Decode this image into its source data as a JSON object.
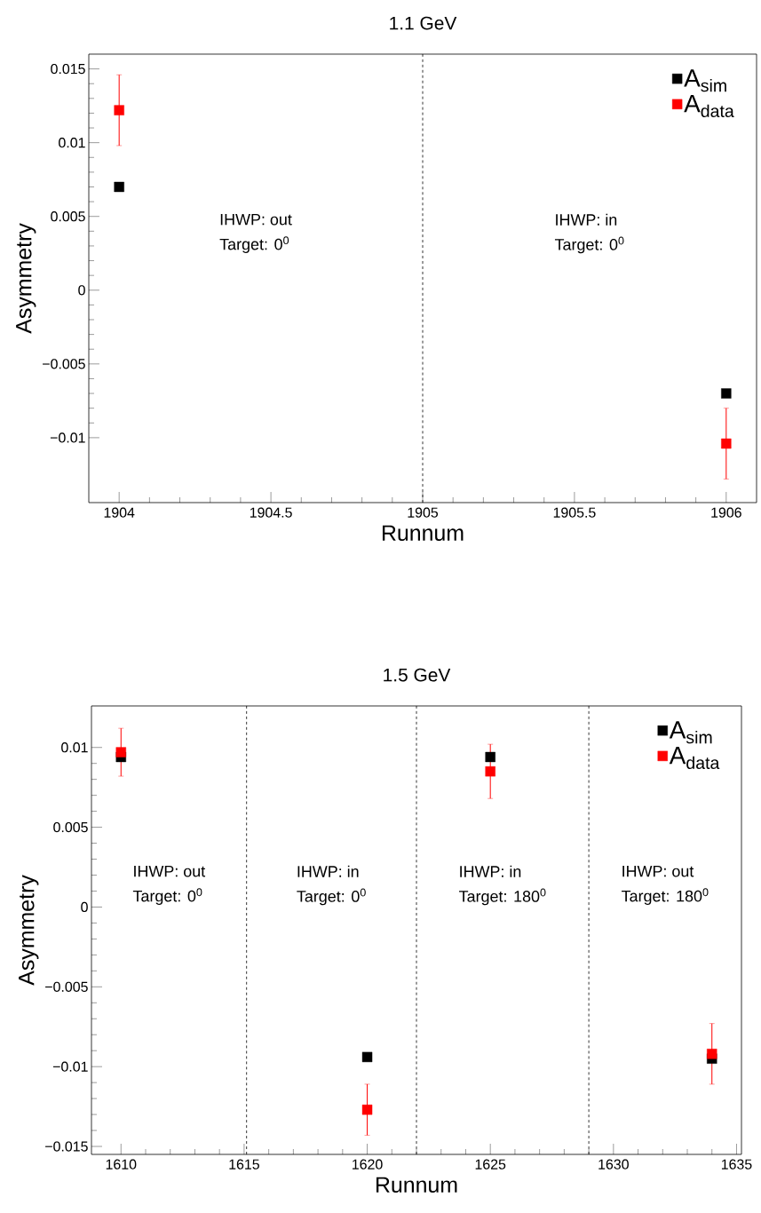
{
  "chart_data": [
    {
      "type": "scatter",
      "title": "1.1 GeV",
      "xlabel": "Runnum",
      "ylabel": "Asymmetry",
      "x": [
        1904,
        1906
      ],
      "series": [
        {
          "name": "A$_{sim}$",
          "color": "#000000",
          "values": [
            0.007,
            -0.007
          ]
        },
        {
          "name": "A$_{data}$",
          "color": "#ff0000",
          "values": [
            0.0122,
            -0.0104
          ],
          "errors": [
            0.0024,
            0.0024
          ]
        }
      ],
      "xlim": [
        1903.9,
        1906.1
      ],
      "ylim": [
        -0.0144,
        0.016
      ],
      "xticks": [
        1904,
        1904.5,
        1905,
        1905.5,
        1906
      ],
      "yticks": [
        {
          "value": -0.01,
          "label": "−0.01"
        },
        {
          "value": -0.005,
          "label": "−0.005"
        },
        0,
        0.005,
        0.01,
        0.015
      ],
      "ref_lines": [
        {
          "axis": "x",
          "value": 1905,
          "line_style": "dashed",
          "color": "#000000"
        }
      ],
      "annotations": [
        "IHWP: out",
        "Target: 0$^{0}$",
        "IHWP: in",
        "Target: 0$^{0}$"
      ],
      "marker": "square",
      "legend": "top right",
      "grid": false
    },
    {
      "type": "scatter",
      "title": "1.5 GeV",
      "xlabel": "Runnum",
      "ylabel": "Asymmetry",
      "x": [
        1610,
        1620,
        1625,
        1634
      ],
      "series": [
        {
          "name": "A$_{sim}$",
          "color": "#000000",
          "values": [
            0.0094,
            -0.0094,
            0.0094,
            -0.0095
          ]
        },
        {
          "name": "A$_{data}$",
          "color": "#ff0000",
          "values": [
            0.0097,
            -0.0127,
            0.0085,
            -0.0092
          ],
          "errors": [
            0.0015,
            0.0016,
            0.0017,
            0.0019
          ]
        }
      ],
      "xlim": [
        1608.8,
        1635.2
      ],
      "ylim": [
        -0.0155,
        0.0126
      ],
      "xticks": [
        1610,
        1615,
        1620,
        1625,
        1630,
        1635
      ],
      "yticks": [
        {
          "value": -0.015,
          "label": "−0.015"
        },
        {
          "value": -0.01,
          "label": "−0.01"
        },
        {
          "value": -0.005,
          "label": "−0.005"
        },
        0,
        0.005,
        0.01
      ],
      "ref_lines": [
        {
          "axis": "x",
          "value": 1615.1,
          "line_style": "dashed",
          "color": "#000000"
        },
        {
          "axis": "x",
          "value": 1622,
          "line_style": "dashed",
          "color": "#000000"
        },
        {
          "axis": "x",
          "value": 1629,
          "line_style": "dashed",
          "color": "#000000"
        }
      ],
      "annotations": [
        "IHWP: out",
        "Target: 0$^{0}$",
        "IHWP: in",
        "Target: 0$^{0}$",
        "IHWP: in",
        "Target: 180$^{0}$",
        "IHWP: out",
        "Target: 180$^{0}$"
      ],
      "marker": "square",
      "legend": "top right",
      "grid": false
    }
  ]
}
